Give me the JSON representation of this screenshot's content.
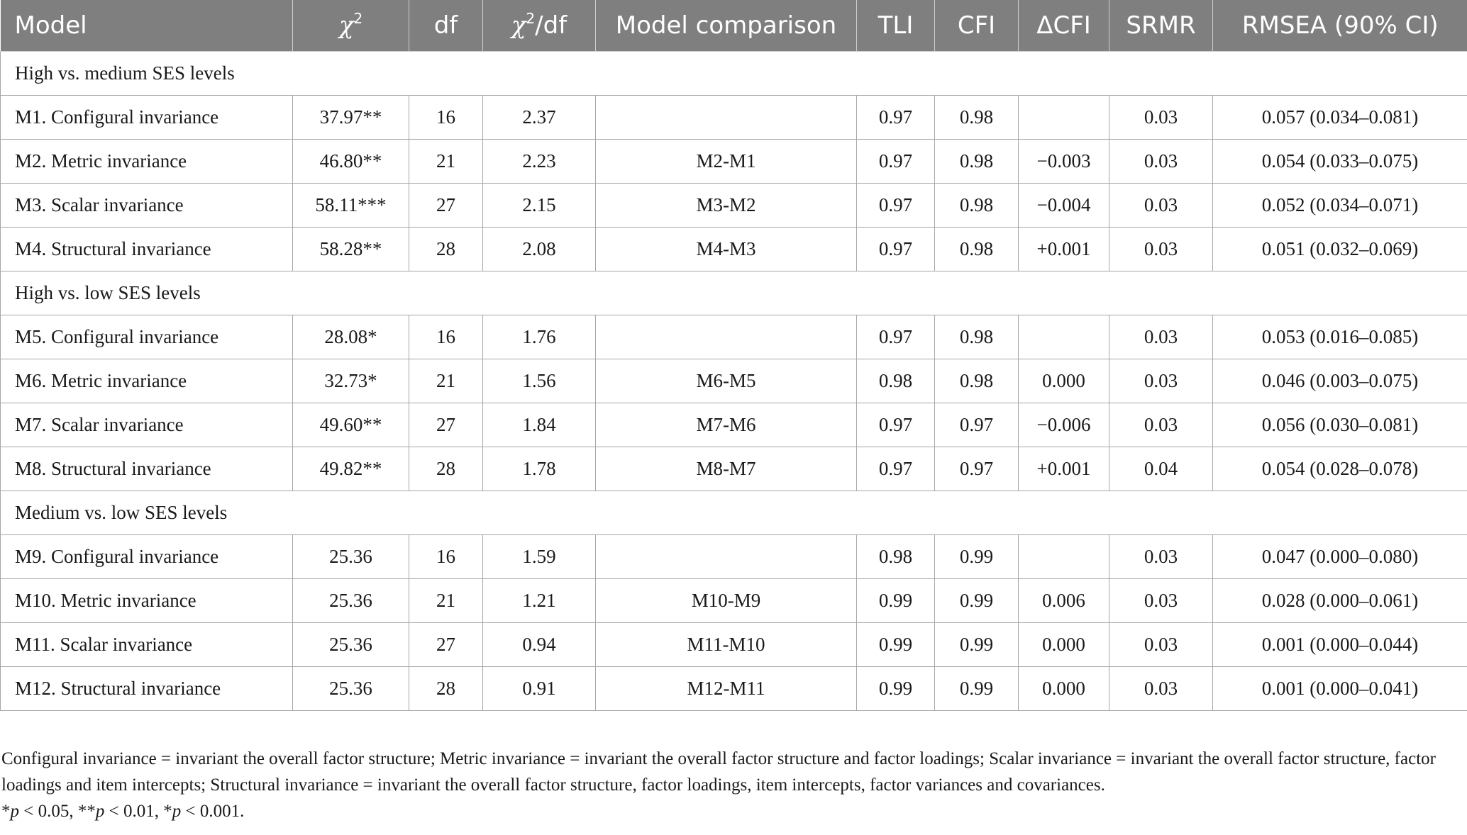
{
  "table": {
    "headers": {
      "model": "Model",
      "chi2": "χ",
      "chi2_sup": "2",
      "df": "df",
      "chi2df_a": "χ",
      "chi2df_sup": "2",
      "chi2df_b": "/df",
      "comparison": "Model comparison",
      "tli": "TLI",
      "cfi": "CFI",
      "dcfi": "ΔCFI",
      "srmr": "SRMR",
      "rmsea": "RMSEA (90% CI)"
    },
    "groups": [
      {
        "label": "High vs. medium SES levels",
        "rows": [
          {
            "model": "M1. Configural invariance",
            "chi2": "37.97**",
            "df": "16",
            "chi2df": "2.37",
            "comparison": "",
            "tli": "0.97",
            "cfi": "0.98",
            "dcfi": "",
            "srmr": "0.03",
            "rmsea": "0.057 (0.034–0.081)"
          },
          {
            "model": "M2. Metric invariance",
            "chi2": "46.80**",
            "df": "21",
            "chi2df": "2.23",
            "comparison": "M2-M1",
            "tli": "0.97",
            "cfi": "0.98",
            "dcfi": "−0.003",
            "srmr": "0.03",
            "rmsea": "0.054 (0.033–0.075)"
          },
          {
            "model": "M3. Scalar invariance",
            "chi2": "58.11***",
            "df": "27",
            "chi2df": "2.15",
            "comparison": "M3-M2",
            "tli": "0.97",
            "cfi": "0.98",
            "dcfi": "−0.004",
            "srmr": "0.03",
            "rmsea": "0.052 (0.034–0.071)"
          },
          {
            "model": "M4. Structural invariance",
            "chi2": "58.28**",
            "df": "28",
            "chi2df": "2.08",
            "comparison": "M4-M3",
            "tli": "0.97",
            "cfi": "0.98",
            "dcfi": "+0.001",
            "srmr": "0.03",
            "rmsea": "0.051 (0.032–0.069)"
          }
        ]
      },
      {
        "label": "High vs. low SES levels",
        "rows": [
          {
            "model": "M5. Configural invariance",
            "chi2": "28.08*",
            "df": "16",
            "chi2df": "1.76",
            "comparison": "",
            "tli": "0.97",
            "cfi": "0.98",
            "dcfi": "",
            "srmr": "0.03",
            "rmsea": "0.053 (0.016–0.085)"
          },
          {
            "model": "M6. Metric invariance",
            "chi2": "32.73*",
            "df": "21",
            "chi2df": "1.56",
            "comparison": "M6-M5",
            "tli": "0.98",
            "cfi": "0.98",
            "dcfi": "0.000",
            "srmr": "0.03",
            "rmsea": "0.046 (0.003–0.075)"
          },
          {
            "model": "M7. Scalar invariance",
            "chi2": "49.60**",
            "df": "27",
            "chi2df": "1.84",
            "comparison": "M7-M6",
            "tli": "0.97",
            "cfi": "0.97",
            "dcfi": "−0.006",
            "srmr": "0.03",
            "rmsea": "0.056 (0.030–0.081)"
          },
          {
            "model": "M8. Structural invariance",
            "chi2": "49.82**",
            "df": "28",
            "chi2df": "1.78",
            "comparison": "M8-M7",
            "tli": "0.97",
            "cfi": "0.97",
            "dcfi": "+0.001",
            "srmr": "0.04",
            "rmsea": "0.054 (0.028–0.078)"
          }
        ]
      },
      {
        "label": "Medium vs. low SES levels",
        "rows": [
          {
            "model": "M9. Configural invariance",
            "chi2": "25.36",
            "df": "16",
            "chi2df": "1.59",
            "comparison": "",
            "tli": "0.98",
            "cfi": "0.99",
            "dcfi": "",
            "srmr": "0.03",
            "rmsea": "0.047 (0.000–0.080)"
          },
          {
            "model": "M10. Metric invariance",
            "chi2": "25.36",
            "df": "21",
            "chi2df": "1.21",
            "comparison": "M10-M9",
            "tli": "0.99",
            "cfi": "0.99",
            "dcfi": "0.006",
            "srmr": "0.03",
            "rmsea": "0.028 (0.000–0.061)"
          },
          {
            "model": "M11. Scalar invariance",
            "chi2": "25.36",
            "df": "27",
            "chi2df": "0.94",
            "comparison": "M11-M10",
            "tli": "0.99",
            "cfi": "0.99",
            "dcfi": "0.000",
            "srmr": "0.03",
            "rmsea": "0.001 (0.000–0.044)"
          },
          {
            "model": "M12. Structural invariance",
            "chi2": "25.36",
            "df": "28",
            "chi2df": "0.91",
            "comparison": "M12-M11",
            "tli": "0.99",
            "cfi": "0.99",
            "dcfi": "0.000",
            "srmr": "0.03",
            "rmsea": "0.001 (0.000–0.041)"
          }
        ]
      }
    ]
  },
  "footnote": {
    "definitions": "Configural invariance = invariant the overall factor structure; Metric invariance = invariant the overall factor structure and factor loadings; Scalar invariance = invariant the overall factor structure, factor loadings and item intercepts; Structural invariance = invariant the overall factor structure, factor loadings, item intercepts, factor variances and covariances.",
    "sig_1_mark": "*",
    "sig_1_p": "p",
    "sig_1_rest": " < 0.05, **",
    "sig_2_p": "p",
    "sig_2_rest": " < 0.01, *",
    "sig_3_p": "p",
    "sig_3_rest": " < 0.001."
  }
}
